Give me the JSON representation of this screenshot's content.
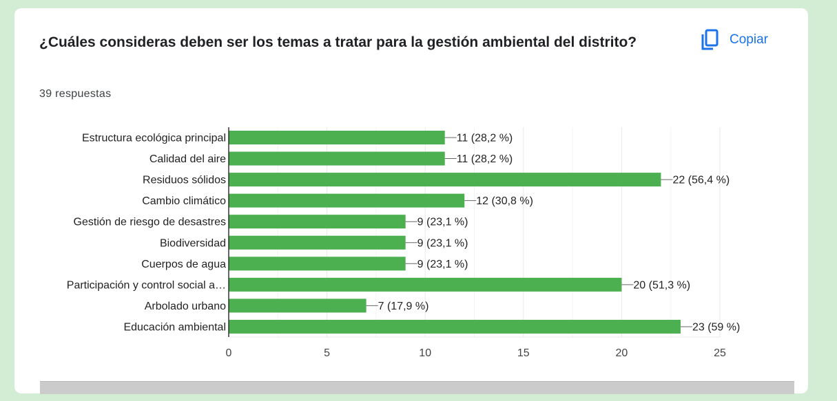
{
  "header": {
    "title": "¿Cuáles consideras deben ser los temas a tratar para la gestión ambiental del distrito?",
    "responses": "39 respuestas",
    "copy_label": "Copiar",
    "copy_icon": "copy-icon"
  },
  "colors": {
    "bar": "#4caf50",
    "accent": "#1a73e8",
    "background": "#d3ecd4"
  },
  "chart_data": {
    "type": "bar",
    "orientation": "horizontal",
    "categories": [
      "Estructura ecológica principal",
      "Calidad del aire",
      "Residuos sólidos",
      "Cambio climático",
      "Gestión de riesgo de desastres",
      "Biodiversidad",
      "Cuerpos de agua",
      "Participación y control social a…",
      "Arbolado urbano",
      "Educación ambiental"
    ],
    "values": [
      11,
      11,
      22,
      12,
      9,
      9,
      9,
      20,
      7,
      23
    ],
    "data_labels": [
      "11 (28,2 %)",
      "11 (28,2 %)",
      "22 (56,4 %)",
      "12 (30,8 %)",
      "9 (23,1 %)",
      "9 (23,1 %)",
      "9 (23,1 %)",
      "20 (51,3 %)",
      "7 (17,9 %)",
      "23 (59 %)"
    ],
    "xlim": [
      0,
      25
    ],
    "xticks": [
      "0",
      "5",
      "10",
      "15",
      "20",
      "25"
    ],
    "grid": true
  }
}
